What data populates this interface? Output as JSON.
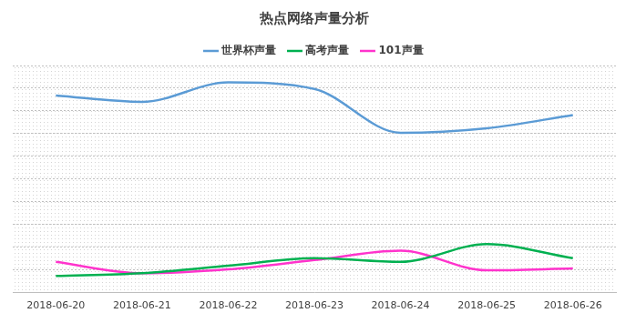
{
  "chart_data": {
    "type": "line",
    "title": "热点网络声量分析",
    "categories": [
      "2018-06-20",
      "2018-06-21",
      "2018-06-22",
      "2018-06-23",
      "2018-06-24",
      "2018-06-25",
      "2018-06-26"
    ],
    "series": [
      {
        "name": "世界杯声量",
        "color": "#5B9BD5",
        "values": [
          868,
          840,
          926,
          897,
          704,
          724,
          782
        ]
      },
      {
        "name": "高考声量",
        "color": "#00B050",
        "values": [
          74,
          86,
          119,
          152,
          136,
          214,
          152
        ]
      },
      {
        "name": "101声量",
        "color": "#FF33CC",
        "values": [
          136,
          86,
          103,
          144,
          185,
          99,
          107
        ]
      }
    ],
    "ylim": [
      0,
      1000
    ],
    "yticks": [
      0,
      100,
      200,
      300,
      400,
      500,
      600,
      700,
      800,
      900,
      1000
    ],
    "grid": true,
    "legend": "top",
    "tick_labels": "x",
    "marker": "none",
    "line_style": "smooth"
  }
}
